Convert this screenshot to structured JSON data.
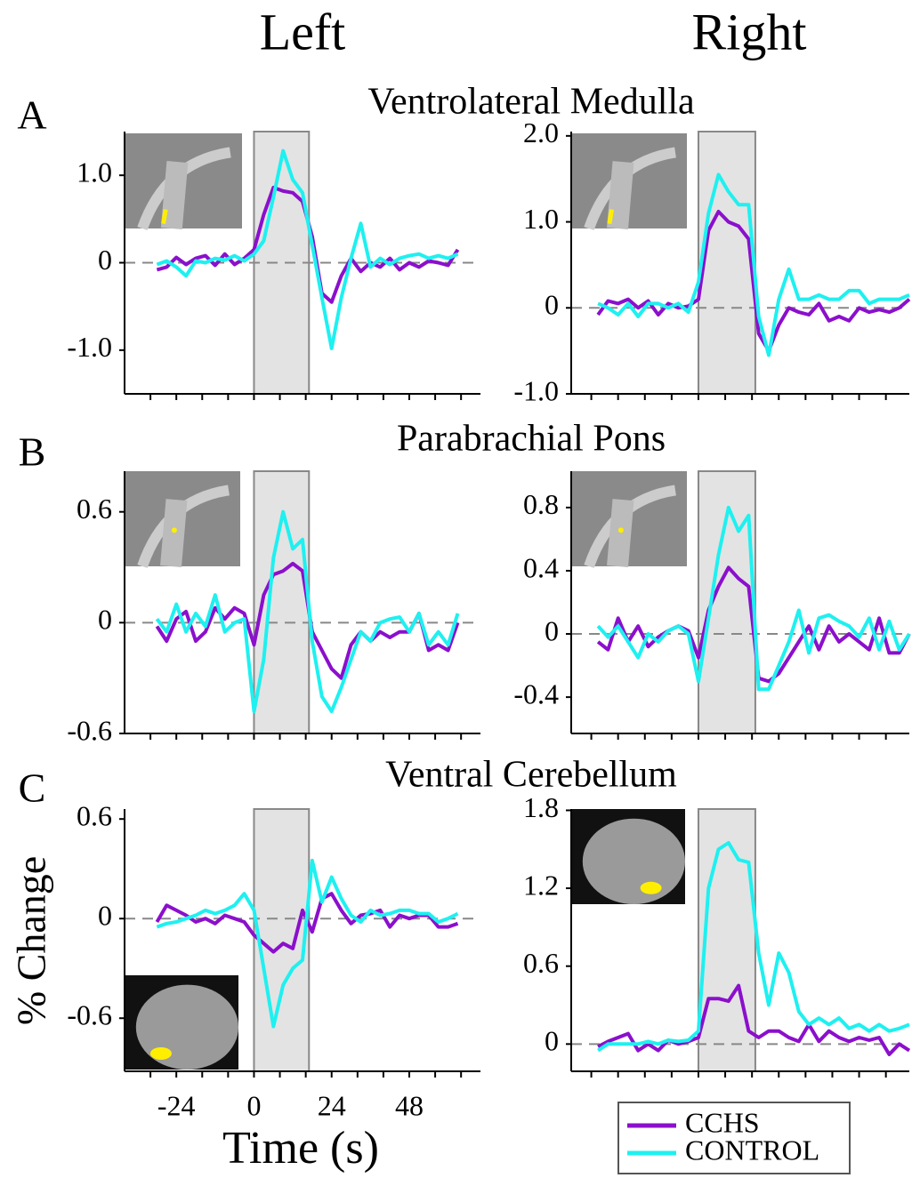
{
  "headers": {
    "left": "Left",
    "right": "Right"
  },
  "chart_data": [
    {
      "type": "line",
      "panel_label": "A",
      "title": "Ventrolateral Medulla",
      "x": [
        -30,
        -27,
        -24,
        -21,
        -18,
        -15,
        -12,
        -9,
        -6,
        -3,
        0,
        3,
        6,
        9,
        12,
        15,
        18,
        21,
        24,
        27,
        30,
        33,
        36,
        39,
        42,
        45,
        48,
        51,
        54,
        57,
        60,
        63
      ],
      "xlim": [
        -40,
        70
      ],
      "ylim": [
        -1.5,
        1.5
      ],
      "yticks": [
        {
          "value": 1,
          "label": "1.0"
        },
        0,
        {
          "value": -1,
          "label": "-1.0"
        }
      ],
      "xminor": [
        -32,
        -24,
        -16,
        -8,
        0,
        8,
        16,
        24,
        32,
        40,
        48,
        56,
        64
      ],
      "highlight_x": [
        0,
        17
      ],
      "series": [
        {
          "name": "CCHS",
          "color": "#8b0fcc",
          "values": [
            -0.08,
            -0.05,
            0.06,
            -0.02,
            0.05,
            0.08,
            -0.03,
            0.1,
            -0.02,
            0.05,
            0.15,
            0.55,
            0.86,
            0.82,
            0.8,
            0.7,
            0.3,
            -0.35,
            -0.45,
            -0.15,
            0.05,
            -0.1,
            0,
            -0.05,
            0.05,
            -0.08,
            0,
            -0.05,
            0.02,
            0,
            -0.03,
            0.15
          ]
        },
        {
          "name": "CONTROL",
          "color": "#1ff0f0",
          "values": [
            -0.02,
            0.02,
            -0.05,
            -0.15,
            0.02,
            0,
            0.05,
            0.03,
            0.08,
            0.02,
            0.1,
            0.25,
            0.75,
            1.28,
            0.95,
            0.8,
            0.2,
            -0.4,
            -0.98,
            -0.4,
            0.05,
            0.45,
            -0.05,
            0.05,
            -0.02,
            0.05,
            0.08,
            0.1,
            0.05,
            0.08,
            0.05,
            0.1
          ]
        }
      ]
    },
    {
      "type": "line",
      "x": [
        -30,
        -27,
        -24,
        -21,
        -18,
        -15,
        -12,
        -9,
        -6,
        -3,
        0,
        3,
        6,
        9,
        12,
        15,
        18,
        21,
        24,
        27,
        30,
        33,
        36,
        39,
        42,
        45,
        48,
        51,
        54,
        57,
        60,
        63
      ],
      "xlim": [
        -38,
        63
      ],
      "ylim": [
        -1,
        2.05
      ],
      "yticks": [
        {
          "value": 2,
          "label": "2.0"
        },
        {
          "value": 1,
          "label": "1.0"
        },
        0,
        {
          "value": -1,
          "label": "-1.0"
        }
      ],
      "xminor": [
        -32,
        -24,
        -16,
        -8,
        0,
        8,
        16,
        24,
        32,
        40,
        48,
        56
      ],
      "highlight_x": [
        0,
        17
      ],
      "series": [
        {
          "name": "CCHS",
          "color": "#8b0fcc",
          "values": [
            -0.08,
            0.08,
            0.05,
            0.1,
            0,
            0.08,
            -0.08,
            0.05,
            0,
            0.02,
            0.1,
            0.9,
            1.12,
            1.0,
            0.95,
            0.8,
            -0.3,
            -0.5,
            -0.2,
            0,
            -0.05,
            -0.08,
            0.05,
            -0.15,
            -0.1,
            -0.15,
            0,
            -0.05,
            -0.02,
            -0.05,
            0,
            0.1
          ]
        },
        {
          "name": "CONTROL",
          "color": "#1ff0f0",
          "values": [
            0.05,
            0,
            -0.08,
            0.05,
            -0.1,
            0.05,
            0.05,
            0,
            0.05,
            -0.05,
            0.3,
            1.1,
            1.55,
            1.35,
            1.2,
            1.2,
            -0.1,
            -0.55,
            0.1,
            0.45,
            0.1,
            0.1,
            0.15,
            0.1,
            0.1,
            0.2,
            0.2,
            0.05,
            0.1,
            0.1,
            0.1,
            0.15
          ]
        }
      ]
    },
    {
      "type": "line",
      "panel_label": "B",
      "title": "Parabrachial Pons",
      "x": [
        -30,
        -27,
        -24,
        -21,
        -18,
        -15,
        -12,
        -9,
        -6,
        -3,
        0,
        3,
        6,
        9,
        12,
        15,
        18,
        21,
        24,
        27,
        30,
        33,
        36,
        39,
        42,
        45,
        48,
        51,
        54,
        57,
        60,
        63
      ],
      "xlim": [
        -40,
        70
      ],
      "ylim": [
        -0.6,
        0.82
      ],
      "yticks": [
        0.6,
        0,
        -0.6
      ],
      "xminor": [
        -32,
        -24,
        -16,
        -8,
        0,
        8,
        16,
        24,
        32,
        40,
        48,
        56,
        64
      ],
      "highlight_x": [
        0,
        17
      ],
      "series": [
        {
          "name": "CCHS",
          "color": "#8b0fcc",
          "values": [
            -0.02,
            -0.1,
            0.02,
            0.06,
            -0.1,
            -0.05,
            0.08,
            0.02,
            0.08,
            0.05,
            -0.12,
            0.15,
            0.26,
            0.28,
            0.32,
            0.28,
            -0.05,
            -0.15,
            -0.25,
            -0.3,
            -0.12,
            -0.05,
            -0.1,
            -0.05,
            -0.08,
            -0.05,
            -0.05,
            0.05,
            -0.15,
            -0.12,
            -0.15,
            0
          ]
        },
        {
          "name": "CONTROL",
          "color": "#1ff0f0",
          "values": [
            0.02,
            -0.05,
            0.1,
            -0.05,
            0.05,
            -0.02,
            0.15,
            -0.05,
            0,
            0.02,
            -0.48,
            -0.2,
            0.35,
            0.6,
            0.4,
            0.45,
            -0.1,
            -0.4,
            -0.48,
            -0.35,
            -0.2,
            -0.05,
            -0.1,
            0,
            0.02,
            0.03,
            -0.05,
            0.05,
            -0.12,
            -0.05,
            -0.12,
            0.05
          ]
        }
      ]
    },
    {
      "type": "line",
      "x": [
        -30,
        -27,
        -24,
        -21,
        -18,
        -15,
        -12,
        -9,
        -6,
        -3,
        0,
        3,
        6,
        9,
        12,
        15,
        18,
        21,
        24,
        27,
        30,
        33,
        36,
        39,
        42,
        45,
        48,
        51,
        54,
        57,
        60,
        63
      ],
      "xlim": [
        -38,
        63
      ],
      "ylim": [
        -0.63,
        1.03
      ],
      "yticks": [
        0.8,
        0.4,
        0,
        -0.4
      ],
      "xminor": [
        -32,
        -24,
        -16,
        -8,
        0,
        8,
        16,
        24,
        32,
        40,
        48,
        56
      ],
      "highlight_x": [
        0,
        17
      ],
      "series": [
        {
          "name": "CCHS",
          "color": "#8b0fcc",
          "values": [
            -0.05,
            -0.1,
            0.1,
            -0.05,
            0.05,
            -0.08,
            -0.02,
            0.02,
            0.05,
            0.02,
            -0.15,
            0.15,
            0.3,
            0.42,
            0.35,
            0.3,
            -0.28,
            -0.3,
            -0.25,
            -0.15,
            -0.05,
            0.05,
            -0.1,
            0.05,
            -0.05,
            0,
            -0.05,
            -0.1,
            0.1,
            -0.12,
            -0.12,
            0
          ]
        },
        {
          "name": "CONTROL",
          "color": "#1ff0f0",
          "values": [
            0.05,
            -0.02,
            0.05,
            -0.05,
            -0.15,
            0,
            -0.05,
            0.02,
            0.05,
            0,
            -0.3,
            0.1,
            0.5,
            0.8,
            0.65,
            0.75,
            -0.35,
            -0.35,
            -0.2,
            -0.05,
            0.15,
            -0.12,
            0.1,
            0.12,
            0.08,
            0.05,
            -0.02,
            0.1,
            -0.1,
            0.08,
            -0.1,
            0
          ]
        }
      ]
    },
    {
      "type": "line",
      "panel_label": "C",
      "title": "Ventral Cerebellum",
      "ylabel": "% Change",
      "xlabel": "Time (s)",
      "x": [
        -30,
        -27,
        -24,
        -21,
        -18,
        -15,
        -12,
        -9,
        -6,
        -3,
        0,
        3,
        6,
        9,
        12,
        15,
        18,
        21,
        24,
        27,
        30,
        33,
        36,
        39,
        42,
        45,
        48,
        51,
        54,
        57,
        60,
        63
      ],
      "xlim": [
        -40,
        70
      ],
      "ylim": [
        -0.92,
        0.66
      ],
      "yticks": [
        0.6,
        0,
        -0.6
      ],
      "xticks": [
        -24,
        0,
        24,
        48
      ],
      "xminor": [
        -32,
        -24,
        -16,
        -8,
        0,
        8,
        16,
        24,
        32,
        40,
        48,
        56,
        64
      ],
      "highlight_x": [
        0,
        17
      ],
      "series": [
        {
          "name": "CCHS",
          "color": "#8b0fcc",
          "values": [
            -0.02,
            0.08,
            0.05,
            0.02,
            -0.02,
            0,
            -0.03,
            0.02,
            0,
            -0.02,
            -0.1,
            -0.15,
            -0.2,
            -0.15,
            -0.18,
            0.05,
            -0.08,
            0.12,
            0.15,
            0.05,
            -0.03,
            0.02,
            0.03,
            0.05,
            -0.05,
            0.02,
            0,
            0.02,
            0.02,
            -0.05,
            -0.05,
            -0.03
          ]
        },
        {
          "name": "CONTROL",
          "color": "#1ff0f0",
          "values": [
            -0.05,
            -0.03,
            -0.02,
            0,
            0.02,
            0.05,
            0.03,
            0.05,
            0.08,
            0.15,
            0.05,
            -0.3,
            -0.65,
            -0.4,
            -0.3,
            -0.25,
            0.35,
            0.1,
            0.25,
            0.12,
            0.02,
            -0.02,
            0.05,
            0.02,
            0.03,
            0.05,
            0.05,
            0.03,
            0.03,
            -0.02,
            0,
            0.03
          ]
        }
      ]
    },
    {
      "type": "line",
      "x": [
        -30,
        -27,
        -24,
        -21,
        -18,
        -15,
        -12,
        -9,
        -6,
        -3,
        0,
        3,
        6,
        9,
        12,
        15,
        18,
        21,
        24,
        27,
        30,
        33,
        36,
        39,
        42,
        45,
        48,
        51,
        54,
        57,
        60,
        63
      ],
      "xlim": [
        -38,
        63
      ],
      "ylim": [
        -0.21,
        1.81
      ],
      "yticks": [
        1.8,
        1.2,
        0.6,
        0
      ],
      "xminor": [
        -32,
        -24,
        -16,
        -8,
        0,
        8,
        16,
        24,
        32,
        40,
        48,
        56
      ],
      "highlight_x": [
        0,
        17
      ],
      "series": [
        {
          "name": "CCHS",
          "color": "#8b0fcc",
          "values": [
            -0.02,
            0.02,
            0.05,
            0.08,
            -0.05,
            0,
            -0.05,
            0.03,
            0,
            0.02,
            0.05,
            0.35,
            0.35,
            0.33,
            0.45,
            0.1,
            0.05,
            0.1,
            0.1,
            0.05,
            0.02,
            0.15,
            0.02,
            0.1,
            0.05,
            0.02,
            0.05,
            0.03,
            0.05,
            -0.08,
            0,
            -0.05
          ]
        },
        {
          "name": "CONTROL",
          "color": "#1ff0f0",
          "values": [
            -0.05,
            0,
            0,
            0,
            0,
            0.02,
            0,
            0.03,
            0.02,
            0.03,
            0.1,
            1.2,
            1.5,
            1.55,
            1.42,
            1.4,
            0.7,
            0.3,
            0.7,
            0.55,
            0.25,
            0.15,
            0.2,
            0.15,
            0.2,
            0.12,
            0.15,
            0.1,
            0.15,
            0.1,
            0.12,
            0.15
          ]
        }
      ]
    }
  ]
}
